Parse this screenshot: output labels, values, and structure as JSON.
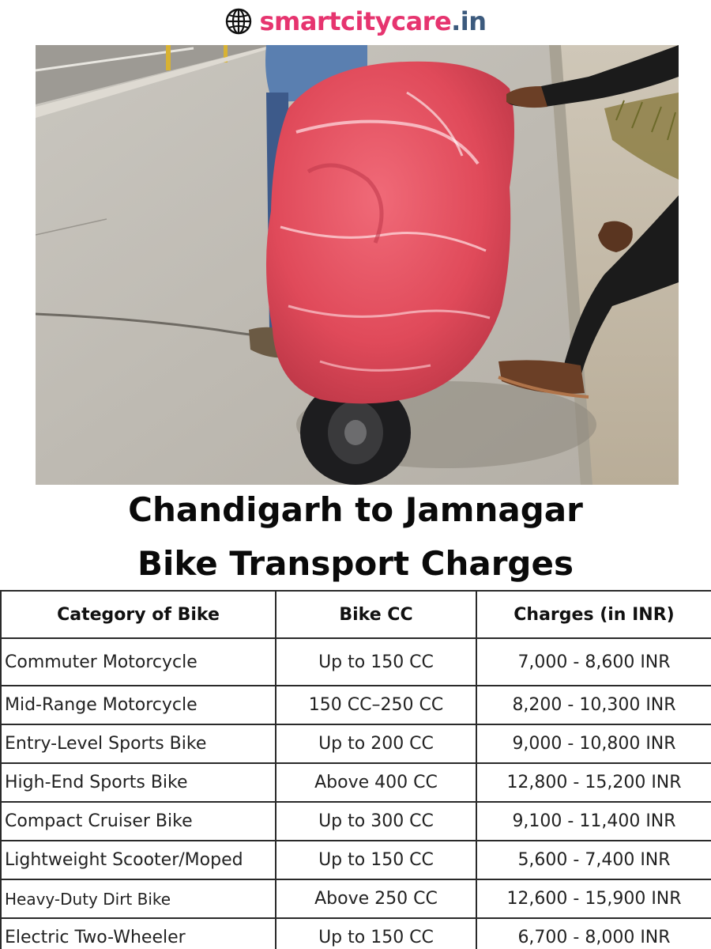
{
  "brand": {
    "name": "smartcitycare",
    "tld": ".in",
    "icon": "globe-icon",
    "colors": {
      "name": "#e6346f",
      "tld": "#3c5a7d"
    }
  },
  "photo": {
    "icon": "scooter-wrapped-photo"
  },
  "title": {
    "line1": "Chandigarh to Jamnagar",
    "line2": "Bike Transport Charges"
  },
  "table": {
    "headers": [
      "Category of Bike",
      "Bike CC",
      "Charges (in INR)"
    ],
    "rows": [
      {
        "category": "Commuter Motorcycle",
        "cc": "Up to 150 CC",
        "charges": "7,000 - 8,600 INR"
      },
      {
        "category": "Mid-Range Motorcycle",
        "cc": "150 CC–250 CC",
        "charges": "8,200 - 10,300 INR"
      },
      {
        "category": "Entry-Level Sports Bike",
        "cc": "Up to 200 CC",
        "charges": "9,000 - 10,800 INR"
      },
      {
        "category": "High-End Sports Bike",
        "cc": "Above 400 CC",
        "charges": "12,800 - 15,200 INR"
      },
      {
        "category": "Compact Cruiser Bike",
        "cc": "Up to 300 CC",
        "charges": "9,100 - 11,400 INR"
      },
      {
        "category": "Lightweight Scooter/Moped",
        "cc": "Up to 150 CC",
        "charges": "5,600 - 7,400 INR"
      },
      {
        "category": "Heavy-Duty Dirt Bike",
        "cc": "Above 250 CC",
        "charges": "12,600 - 15,900 INR"
      },
      {
        "category": "Electric Two-Wheeler",
        "cc": "Up to 150 CC",
        "charges": "6,700 - 8,000 INR"
      }
    ]
  }
}
